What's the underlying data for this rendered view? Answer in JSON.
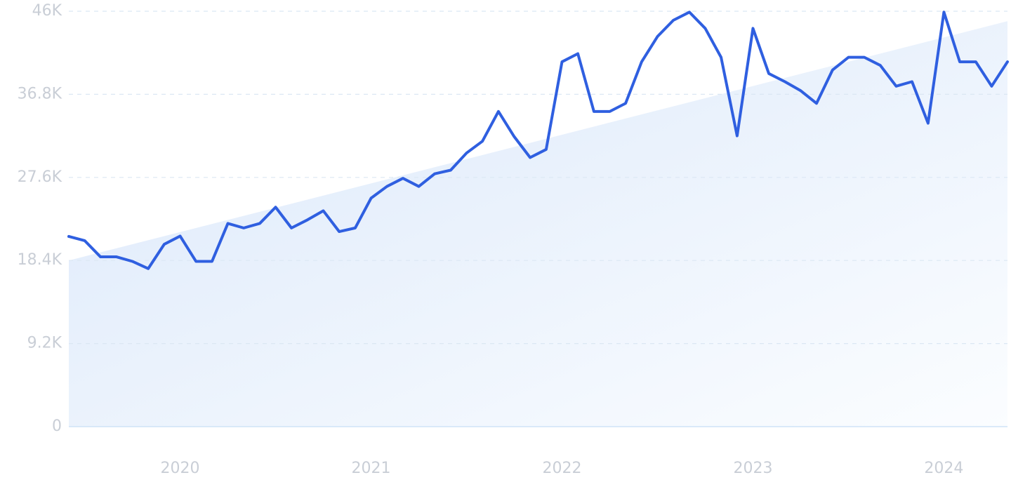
{
  "chart_data": {
    "type": "line",
    "x": [
      2019.417,
      2019.5,
      2019.583,
      2019.667,
      2019.75,
      2019.833,
      2019.917,
      2020,
      2020.083,
      2020.167,
      2020.25,
      2020.333,
      2020.417,
      2020.5,
      2020.583,
      2020.667,
      2020.75,
      2020.833,
      2020.917,
      2021,
      2021.083,
      2021.167,
      2021.25,
      2021.333,
      2021.417,
      2021.5,
      2021.583,
      2021.667,
      2021.75,
      2021.833,
      2021.917,
      2022,
      2022.083,
      2022.167,
      2022.25,
      2022.333,
      2022.417,
      2022.5,
      2022.583,
      2022.667,
      2022.75,
      2022.833,
      2022.917,
      2023,
      2023.083,
      2023.167,
      2023.25,
      2023.333,
      2023.417,
      2023.5,
      2023.583,
      2023.667,
      2023.75,
      2023.833,
      2023.917,
      2024,
      2024.083,
      2024.167,
      2024.25,
      2024.333
    ],
    "series": [
      {
        "color": "#2f5fe0",
        "values": [
          21060,
          20600,
          18800,
          18800,
          18300,
          17500,
          20200,
          21100,
          18300,
          18300,
          22500,
          22000,
          22500,
          24300,
          22000,
          22900,
          23900,
          21600,
          22000,
          25300,
          26600,
          27500,
          26600,
          28000,
          28400,
          30300,
          31600,
          34900,
          32100,
          29800,
          30700,
          40400,
          41300,
          34900,
          34900,
          35800,
          40400,
          43200,
          45000,
          45900,
          44100,
          40900,
          32200,
          44100,
          39100,
          38200,
          37200,
          35800,
          39500,
          40900,
          40900,
          40000,
          37700,
          38200,
          33600,
          45900,
          40400,
          40400,
          37700,
          40400
        ]
      }
    ],
    "trend_values": [
      18400,
      44900
    ],
    "xlim": [
      2019.417,
      2024.333
    ],
    "xticks": [
      2020,
      2021,
      2022,
      2023,
      2024
    ],
    "ylim": [
      0,
      46000
    ],
    "yticks": [
      0,
      {
        "value": 9200,
        "label": "9.2K"
      },
      {
        "value": 18400,
        "label": "18.4K"
      },
      {
        "value": 27600,
        "label": "27.6K"
      },
      {
        "value": 36800,
        "label": "36.8K"
      },
      {
        "value": 46000,
        "label": "46K"
      }
    ],
    "grid": true
  }
}
